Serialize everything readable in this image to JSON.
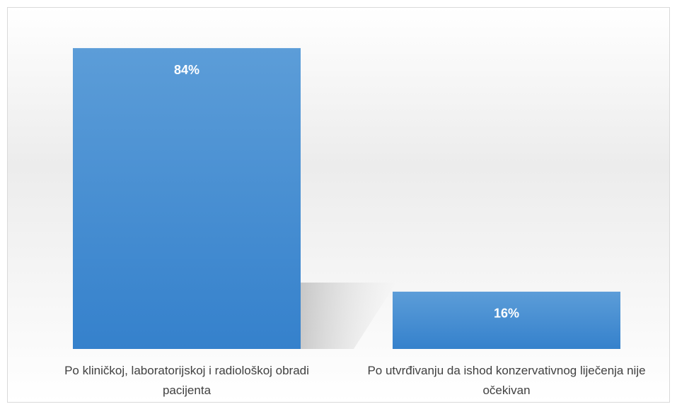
{
  "chart_data": {
    "type": "bar",
    "categories": [
      "Po kliničkoj, laboratorijskoj i radiološkoj obradi pacijenta",
      "Po utvrđivanju da ishod konzervativnog liječenja nije očekivan"
    ],
    "values": [
      84,
      16
    ],
    "value_labels": [
      "84%",
      "16%"
    ],
    "color": "#4a8fd6"
  }
}
